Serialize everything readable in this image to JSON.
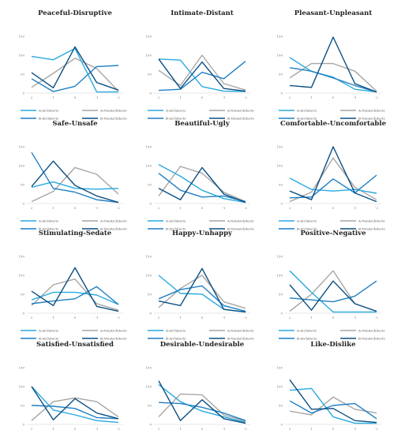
{
  "colors": {
    "A-Architects": "#29a9df",
    "A-NonArchitects": "#a6a6a6",
    "B-Architects": "#1f7fc4",
    "B-NonArchitects": "#0b4f82",
    "axis": "#cfcfcf",
    "tick_text": "#777777",
    "title_text": "#222222"
  },
  "chart_data": [
    {
      "type": "line",
      "title": "Peaceful-Disruptive",
      "categories": [
        "2",
        "1",
        "0",
        "-1",
        "-2"
      ],
      "ylim": [
        0,
        150
      ],
      "yticks": [
        "0",
        "50",
        "100",
        "150"
      ],
      "series": [
        {
          "name": "A-Architects",
          "values": [
            97,
            88,
            118,
            3,
            3
          ]
        },
        {
          "name": "A-NonArchitects",
          "values": [
            15,
            52,
            92,
            65,
            5
          ]
        },
        {
          "name": "B-Architects",
          "values": [
            38,
            4,
            18,
            70,
            73
          ]
        },
        {
          "name": "B-NonArchitects",
          "values": [
            54,
            14,
            122,
            28,
            8
          ]
        }
      ]
    },
    {
      "type": "line",
      "title": "Intimate-Distant",
      "categories": [
        "2",
        "1",
        "0",
        "-1",
        "-2"
      ],
      "ylim": [
        0,
        150
      ],
      "yticks": [
        "0",
        "50",
        "100",
        "150"
      ],
      "series": [
        {
          "name": "A-Architects",
          "values": [
            90,
            87,
            17,
            5,
            4
          ]
        },
        {
          "name": "A-NonArchitects",
          "values": [
            60,
            20,
            100,
            25,
            8
          ]
        },
        {
          "name": "B-Architects",
          "values": [
            7,
            10,
            55,
            38,
            84
          ]
        },
        {
          "name": "B-NonArchitects",
          "values": [
            90,
            12,
            82,
            12,
            5
          ]
        }
      ]
    },
    {
      "type": "line",
      "title": "Pleasant-Unpleasant",
      "categories": [
        "2",
        "1",
        "0",
        "-1",
        "-2"
      ],
      "ylim": [
        0,
        150
      ],
      "yticks": [
        "0",
        "50",
        "100",
        "150"
      ],
      "series": [
        {
          "name": "A-Architects",
          "values": [
            94,
            57,
            42,
            10,
            3
          ]
        },
        {
          "name": "A-NonArchitects",
          "values": [
            40,
            78,
            78,
            58,
            5
          ]
        },
        {
          "name": "B-Architects",
          "values": [
            67,
            58,
            40,
            20,
            3
          ]
        },
        {
          "name": "B-NonArchitects",
          "values": [
            20,
            15,
            148,
            25,
            3
          ]
        }
      ]
    },
    {
      "type": "line",
      "title": "Safe-Unsafe",
      "categories": [
        "2",
        "1",
        "0",
        "-1",
        "-2"
      ],
      "ylim": [
        0,
        150
      ],
      "yticks": [
        "0",
        "50",
        "100",
        "150"
      ],
      "series": [
        {
          "name": "A-Architects",
          "values": [
            43,
            57,
            40,
            38,
            40
          ]
        },
        {
          "name": "A-NonArchitects",
          "values": [
            5,
            32,
            95,
            77,
            25
          ]
        },
        {
          "name": "B-Architects",
          "values": [
            135,
            40,
            30,
            10,
            3
          ]
        },
        {
          "name": "B-NonArchitects",
          "values": [
            45,
            112,
            48,
            20,
            3
          ]
        }
      ]
    },
    {
      "type": "line",
      "title": "Beautiful-Ugly",
      "categories": [
        "2",
        "1",
        "0",
        "-1",
        "-2"
      ],
      "ylim": [
        0,
        150
      ],
      "yticks": [
        "0",
        "50",
        "100",
        "150"
      ],
      "series": [
        {
          "name": "A-Architects",
          "values": [
            103,
            72,
            35,
            13,
            3
          ]
        },
        {
          "name": "A-NonArchitects",
          "values": [
            20,
            98,
            80,
            30,
            5
          ]
        },
        {
          "name": "B-Architects",
          "values": [
            80,
            35,
            17,
            20,
            5
          ]
        },
        {
          "name": "B-NonArchitects",
          "values": [
            40,
            10,
            95,
            25,
            3
          ]
        }
      ]
    },
    {
      "type": "line",
      "title": "Comfortable-Uncomfortable",
      "categories": [
        "2",
        "1",
        "0",
        "-1",
        "-2"
      ],
      "ylim": [
        0,
        150
      ],
      "yticks": [
        "0",
        "50",
        "100",
        "150"
      ],
      "series": [
        {
          "name": "A-Architects",
          "values": [
            67,
            37,
            33,
            37,
            27
          ]
        },
        {
          "name": "A-NonArchitects",
          "values": [
            5,
            30,
            120,
            43,
            10
          ]
        },
        {
          "name": "B-Architects",
          "values": [
            15,
            17,
            65,
            28,
            75
          ]
        },
        {
          "name": "B-NonArchitects",
          "values": [
            33,
            10,
            150,
            28,
            5
          ]
        }
      ]
    },
    {
      "type": "line",
      "title": "Stimulating-Sedate",
      "categories": [
        "2",
        "1",
        "0",
        "-1",
        "-2"
      ],
      "ylim": [
        0,
        150
      ],
      "yticks": [
        "0",
        "50",
        "100",
        "150"
      ],
      "series": [
        {
          "name": "A-Architects",
          "values": [
            35,
            55,
            55,
            48,
            23
          ]
        },
        {
          "name": "A-NonArchitects",
          "values": [
            20,
            75,
            90,
            25,
            8
          ]
        },
        {
          "name": "B-Architects",
          "values": [
            25,
            32,
            38,
            70,
            23
          ]
        },
        {
          "name": "B-NonArchitects",
          "values": [
            58,
            20,
            120,
            18,
            5
          ]
        }
      ]
    },
    {
      "type": "line",
      "title": "Happy-Unhappy",
      "categories": [
        "2",
        "1",
        "0",
        "-1",
        "-2"
      ],
      "ylim": [
        0,
        150
      ],
      "yticks": [
        "0",
        "50",
        "100",
        "150"
      ],
      "series": [
        {
          "name": "A-Architects",
          "values": [
            100,
            52,
            50,
            10,
            3
          ]
        },
        {
          "name": "A-NonArchitects",
          "values": [
            15,
            65,
            100,
            30,
            13
          ]
        },
        {
          "name": "B-Architects",
          "values": [
            38,
            62,
            72,
            20,
            5
          ]
        },
        {
          "name": "B-NonArchitects",
          "values": [
            32,
            20,
            118,
            10,
            3
          ]
        }
      ]
    },
    {
      "type": "line",
      "title": "Positive-Negative",
      "categories": [
        "2",
        "1",
        "0",
        "-1",
        "-2"
      ],
      "ylim": [
        0,
        150
      ],
      "yticks": [
        "0",
        "50",
        "100",
        "150"
      ],
      "series": [
        {
          "name": "A-Architects",
          "values": [
            112,
            55,
            3,
            3,
            3
          ]
        },
        {
          "name": "A-NonArchitects",
          "values": [
            5,
            50,
            112,
            25,
            5
          ]
        },
        {
          "name": "B-Architects",
          "values": [
            40,
            35,
            30,
            45,
            85
          ]
        },
        {
          "name": "B-NonArchitects",
          "values": [
            75,
            8,
            85,
            25,
            5
          ]
        }
      ]
    },
    {
      "type": "line",
      "title": "Satisfied-Unsatisfied",
      "categories": [
        "2",
        "1",
        "0",
        "-1",
        "-2"
      ],
      "ylim": [
        0,
        150
      ],
      "yticks": [
        "0",
        "50",
        "100",
        "150"
      ],
      "series": [
        {
          "name": "A-Architects",
          "values": [
            100,
            38,
            25,
            10,
            5
          ]
        },
        {
          "name": "A-NonArchitects",
          "values": [
            10,
            60,
            70,
            60,
            20
          ]
        },
        {
          "name": "B-Architects",
          "values": [
            50,
            48,
            42,
            18,
            15
          ]
        },
        {
          "name": "B-NonArchitects",
          "values": [
            100,
            12,
            68,
            30,
            15
          ]
        }
      ]
    },
    {
      "type": "line",
      "title": "Desirable-Undesirable",
      "categories": [
        "2",
        "1",
        "0",
        "-1",
        "-2"
      ],
      "ylim": [
        0,
        150
      ],
      "yticks": [
        "0",
        "50",
        "100",
        "150"
      ],
      "series": [
        {
          "name": "A-Architects",
          "values": [
            105,
            60,
            35,
            20,
            5
          ]
        },
        {
          "name": "A-NonArchitects",
          "values": [
            20,
            80,
            78,
            25,
            8
          ]
        },
        {
          "name": "B-Architects",
          "values": [
            58,
            55,
            45,
            30,
            10
          ]
        },
        {
          "name": "B-NonArchitects",
          "values": [
            115,
            10,
            65,
            15,
            3
          ]
        }
      ]
    },
    {
      "type": "line",
      "title": "Like-Dislike",
      "categories": [
        "2",
        "1",
        "0",
        "-1",
        "-2"
      ],
      "ylim": [
        0,
        150
      ],
      "yticks": [
        "0",
        "50",
        "100",
        "150"
      ],
      "series": [
        {
          "name": "A-Architects",
          "values": [
            90,
            95,
            20,
            3,
            3
          ]
        },
        {
          "name": "A-NonArchitects",
          "values": [
            35,
            25,
            72,
            40,
            30
          ]
        },
        {
          "name": "B-Architects",
          "values": [
            62,
            30,
            50,
            55,
            15
          ]
        },
        {
          "name": "B-NonArchitects",
          "values": [
            118,
            40,
            42,
            10,
            5
          ]
        }
      ]
    }
  ]
}
